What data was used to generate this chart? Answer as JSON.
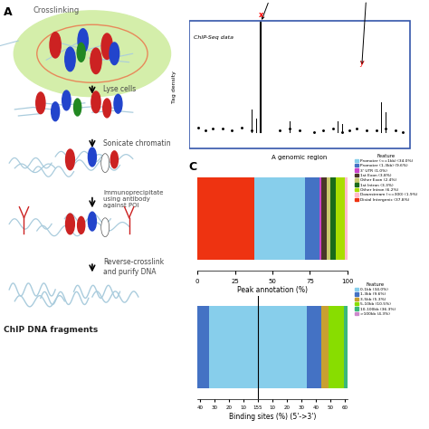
{
  "panel_C_top": {
    "xlabel": "Peak annotation (%)",
    "xticks": [
      0,
      25,
      50,
      75,
      100
    ],
    "features": [
      {
        "label": "Promoter (<=1kb) (34.0%)",
        "value": 34.0,
        "color": "#87CEEB"
      },
      {
        "label": "Promoter (1-3kb) (9.6%)",
        "value": 9.6,
        "color": "#4472C4"
      },
      {
        "label": "3' UTR (1.0%)",
        "value": 1.0,
        "color": "#CC44CC"
      },
      {
        "label": "1st Exon (3.8%)",
        "value": 3.8,
        "color": "#4A3728"
      },
      {
        "label": "Other Exon (2.4%)",
        "value": 2.4,
        "color": "#C8C86E"
      },
      {
        "label": "1st Intron (3.3%)",
        "value": 3.3,
        "color": "#1A6B1A"
      },
      {
        "label": "Other Intron (6.2%)",
        "value": 6.2,
        "color": "#AADD00"
      },
      {
        "label": "Downstream (<=300) (1.9%)",
        "value": 1.9,
        "color": "#FFBBCC"
      },
      {
        "label": "Distal Intergenic (37.8%)",
        "value": 37.8,
        "color": "#EE3311"
      }
    ],
    "bar_order": [
      8,
      0,
      1,
      2,
      3,
      4,
      5,
      6,
      7
    ]
  },
  "panel_C_bottom": {
    "xlabel": "Binding sites (%) (5'->3')",
    "features": [
      {
        "label": "0-1kb (34.0%)",
        "value": 34.0,
        "color": "#87CEEB"
      },
      {
        "label": "1-3kb (9.6%)",
        "value": 9.6,
        "color": "#4472C4"
      },
      {
        "label": "3-5kb (5.3%)",
        "value": 5.3,
        "color": "#C8A030"
      },
      {
        "label": "5-10kb (10.5%)",
        "value": 10.5,
        "color": "#88DD00"
      },
      {
        "label": "10-100kb (36.3%)",
        "value": 36.3,
        "color": "#3AB87A"
      },
      {
        "label": ">100kb (4.3%)",
        "value": 4.3,
        "color": "#CC88CC"
      }
    ]
  }
}
